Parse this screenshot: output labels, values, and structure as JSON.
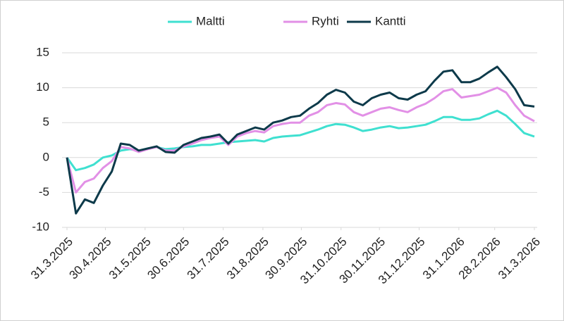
{
  "chart_data": {
    "type": "line",
    "x": [
      "2025-03-31",
      "2025-04-07",
      "2025-04-14",
      "2025-04-21",
      "2025-04-28",
      "2025-05-05",
      "2025-05-12",
      "2025-05-19",
      "2025-05-26",
      "2025-06-02",
      "2025-06-09",
      "2025-06-16",
      "2025-06-23",
      "2025-06-30",
      "2025-07-07",
      "2025-07-14",
      "2025-07-21",
      "2025-07-28",
      "2025-08-04",
      "2025-08-11",
      "2025-08-18",
      "2025-08-25",
      "2025-09-01",
      "2025-09-08",
      "2025-09-15",
      "2025-09-22",
      "2025-09-29",
      "2025-10-06",
      "2025-10-13",
      "2025-10-20",
      "2025-10-27",
      "2025-11-03",
      "2025-11-10",
      "2025-11-17",
      "2025-11-24",
      "2025-12-01",
      "2025-12-08",
      "2025-12-15",
      "2025-12-22",
      "2025-12-29",
      "2026-01-05",
      "2026-01-12",
      "2026-01-19",
      "2026-01-26",
      "2026-02-02",
      "2026-02-09",
      "2026-02-16",
      "2026-02-23",
      "2026-03-02",
      "2026-03-09",
      "2026-03-16",
      "2026-03-23",
      "2026-03-31"
    ],
    "series": [
      {
        "name": "Maltti",
        "color": "#3fe0d0",
        "values": [
          0,
          -1.8,
          -1.5,
          -1,
          0,
          0.3,
          1,
          1.2,
          1,
          1.3,
          1.5,
          1.2,
          1.3,
          1.5,
          1.6,
          1.8,
          1.8,
          2,
          2.2,
          2.3,
          2.4,
          2.5,
          2.3,
          2.8,
          3,
          3.1,
          3.2,
          3.6,
          4,
          4.5,
          4.8,
          4.7,
          4.3,
          3.8,
          4,
          4.3,
          4.5,
          4.2,
          4.3,
          4.5,
          4.7,
          5.2,
          5.8,
          5.8,
          5.4,
          5.4,
          5.6,
          6.2,
          6.7,
          6,
          4.8,
          3.5,
          3
        ]
      },
      {
        "name": "Ryhti",
        "color": "#e290e6",
        "values": [
          0,
          -5,
          -3.5,
          -3,
          -1.5,
          -0.5,
          1.5,
          1.3,
          0.8,
          1.2,
          1.5,
          1,
          1,
          1.6,
          2,
          2.5,
          2.8,
          3,
          1.8,
          3,
          3.5,
          3.8,
          3.6,
          4.5,
          4.8,
          5,
          5,
          6,
          6.5,
          7.5,
          7.8,
          7.6,
          6.5,
          6,
          6.5,
          7,
          7.2,
          6.8,
          6.5,
          7.2,
          7.7,
          8.5,
          9.5,
          9.8,
          8.6,
          8.8,
          9,
          9.5,
          10,
          9.3,
          7.5,
          6,
          5.2
        ]
      },
      {
        "name": "Kantti",
        "color": "#0d3a4a",
        "values": [
          0,
          -8,
          -6,
          -6.5,
          -4,
          -2,
          2,
          1.8,
          1,
          1.3,
          1.6,
          0.8,
          0.7,
          1.8,
          2.3,
          2.8,
          3,
          3.3,
          2,
          3.3,
          3.8,
          4.3,
          4,
          5,
          5.3,
          5.8,
          6,
          7,
          7.8,
          9,
          9.7,
          9.3,
          8,
          7.5,
          8.5,
          9,
          9.3,
          8.5,
          8.3,
          9,
          9.5,
          11,
          12.3,
          12.5,
          10.8,
          10.8,
          11.3,
          12.2,
          13,
          11.5,
          9.8,
          7.5,
          7.3
        ]
      }
    ],
    "xlim": [
      "2025-03-31",
      "2026-03-31"
    ],
    "xticks": [
      {
        "value": "2025-03-31",
        "label": "31.3.2025"
      },
      {
        "value": "2025-04-30",
        "label": "30.4.2025"
      },
      {
        "value": "2025-05-31",
        "label": "31.5.2025"
      },
      {
        "value": "2025-06-30",
        "label": "30.6.2025"
      },
      {
        "value": "2025-07-31",
        "label": "31.7.2025"
      },
      {
        "value": "2025-08-31",
        "label": "31.8.2025"
      },
      {
        "value": "2025-09-30",
        "label": "30.9.2025"
      },
      {
        "value": "2025-10-31",
        "label": "31.10.2025"
      },
      {
        "value": "2025-11-30",
        "label": "30.11.2025"
      },
      {
        "value": "2025-12-31",
        "label": "31.12.2025"
      },
      {
        "value": "2026-01-31",
        "label": "31.1.2026"
      },
      {
        "value": "2026-02-28",
        "label": "28.2.2026"
      },
      {
        "value": "2026-03-31",
        "label": "31.3.2026"
      }
    ],
    "ylim": [
      -10,
      15
    ],
    "yticks": [
      -10,
      -5,
      0,
      5,
      10,
      15
    ],
    "grid": true,
    "legend": "top"
  }
}
